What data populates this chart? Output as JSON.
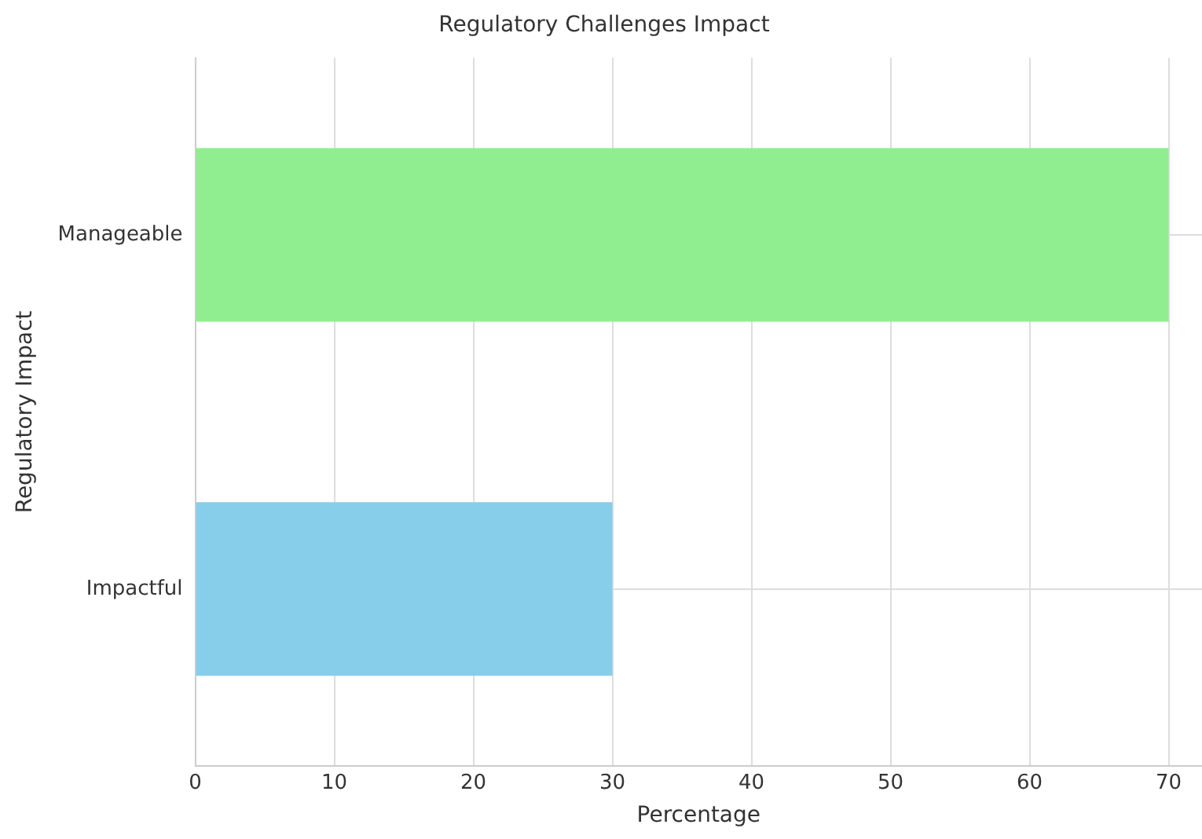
{
  "chart_data": {
    "type": "bar",
    "orientation": "horizontal",
    "title": "Regulatory Challenges Impact",
    "xlabel": "Percentage",
    "ylabel": "Regulatory Impact",
    "categories": [
      "Manageable",
      "Impactful"
    ],
    "values": [
      70,
      30
    ],
    "colors": [
      "#90ee90",
      "#87ceeb"
    ],
    "xlim": [
      0,
      72.4
    ],
    "xticks": [
      0,
      10,
      20,
      30,
      40,
      50,
      60,
      70
    ],
    "grid": true,
    "legend": false
  }
}
